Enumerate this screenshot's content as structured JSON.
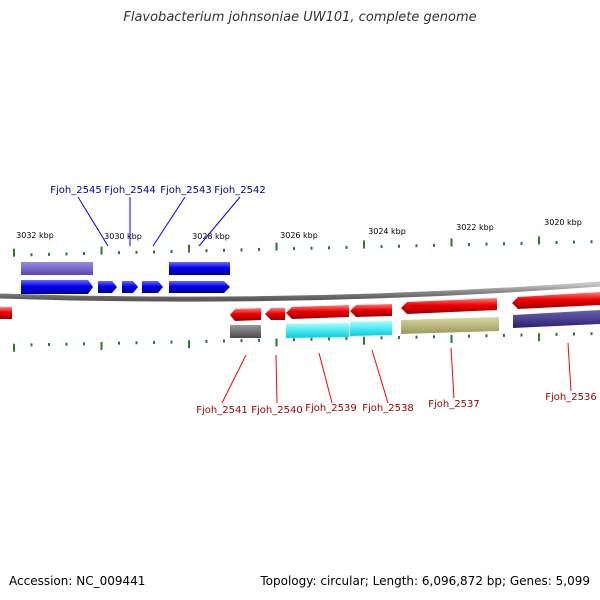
{
  "title": "Flavobacterium johnsoniae UW101, complete genome",
  "footer": {
    "accession": "Accession: NC_009441",
    "summary": "Topology: circular; Length: 6,096,872 bp; Genes: 5,099"
  },
  "colors": {
    "backbone": "#8a8a8a",
    "forward": "#0000ee",
    "reverse": "#ee0000",
    "tick": "#2a7a2a",
    "forward_label": "#000099",
    "reverse_label": "#990000",
    "leader": "#ff0000"
  },
  "scale_labels": [
    "3032 kbp",
    "3030 kbp",
    "3028 kbp",
    "3026 kbp",
    "3024 kbp",
    "3022 kbp",
    "3020 kbp"
  ],
  "forward_genes": [
    {
      "name": "Fjoh_2545"
    },
    {
      "name": "Fjoh_2544"
    },
    {
      "name": "Fjoh_2543"
    },
    {
      "name": "Fjoh_2542"
    }
  ],
  "reverse_genes": [
    {
      "name": "Fjoh_2541"
    },
    {
      "name": "Fjoh_2540"
    },
    {
      "name": "Fjoh_2539"
    },
    {
      "name": "Fjoh_2538"
    },
    {
      "name": "Fjoh_2537"
    },
    {
      "name": "Fjoh_2536"
    }
  ]
}
